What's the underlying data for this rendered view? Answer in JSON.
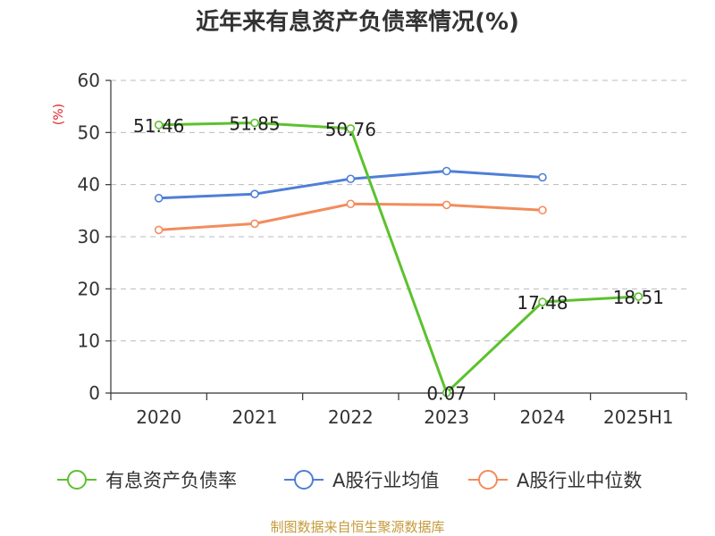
{
  "chart_data": {
    "type": "line",
    "title": "近年来有息资产负债率情况(%)",
    "ylabel": "(%)",
    "categories": [
      "2020",
      "2021",
      "2022",
      "2023",
      "2024",
      "2025H1"
    ],
    "ylim": [
      0,
      60
    ],
    "yticks": [
      "0",
      "10",
      "20",
      "30",
      "40",
      "50",
      "60"
    ],
    "grid": true,
    "legend_position": "bottom",
    "series": [
      {
        "name": "有息资产负债率",
        "color": "#5cc12e",
        "values": [
          51.46,
          51.85,
          50.76,
          0.07,
          17.48,
          18.51
        ],
        "labels": [
          "51.46",
          "51.85",
          "50.76",
          "0.07",
          "17.48",
          "18.51"
        ]
      },
      {
        "name": "A股行业均值",
        "color": "#4f7fd6",
        "values": [
          37.4,
          38.2,
          41.1,
          42.6,
          41.4,
          null
        ]
      },
      {
        "name": "A股行业中位数",
        "color": "#f28c5c",
        "values": [
          31.3,
          32.5,
          36.3,
          36.1,
          35.1,
          null
        ]
      }
    ]
  },
  "source": "制图数据来自恒生聚源数据库"
}
